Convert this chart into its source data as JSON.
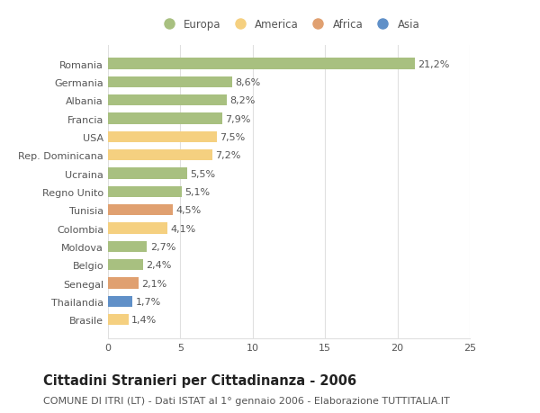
{
  "countries": [
    "Brasile",
    "Thailandia",
    "Senegal",
    "Belgio",
    "Moldova",
    "Colombia",
    "Tunisia",
    "Regno Unito",
    "Ucraina",
    "Rep. Dominicana",
    "USA",
    "Francia",
    "Albania",
    "Germania",
    "Romania"
  ],
  "values": [
    1.4,
    1.7,
    2.1,
    2.4,
    2.7,
    4.1,
    4.5,
    5.1,
    5.5,
    7.2,
    7.5,
    7.9,
    8.2,
    8.6,
    21.2
  ],
  "labels": [
    "1,4%",
    "1,7%",
    "2,1%",
    "2,4%",
    "2,7%",
    "4,1%",
    "4,5%",
    "5,1%",
    "5,5%",
    "7,2%",
    "7,5%",
    "7,9%",
    "8,2%",
    "8,6%",
    "21,2%"
  ],
  "continents": [
    "America",
    "Asia",
    "Africa",
    "Europa",
    "Europa",
    "America",
    "Africa",
    "Europa",
    "Europa",
    "America",
    "America",
    "Europa",
    "Europa",
    "Europa",
    "Europa"
  ],
  "continent_colors": {
    "Europa": "#a8c080",
    "America": "#f5d080",
    "Africa": "#e0a070",
    "Asia": "#6090c8"
  },
  "legend_order": [
    "Europa",
    "America",
    "Africa",
    "Asia"
  ],
  "title": "Cittadini Stranieri per Cittadinanza - 2006",
  "subtitle": "COMUNE DI ITRI (LT) - Dati ISTAT al 1° gennaio 2006 - Elaborazione TUTTITALIA.IT",
  "xlim": [
    0,
    25
  ],
  "xticks": [
    0,
    5,
    10,
    15,
    20,
    25
  ],
  "bg_color": "#ffffff",
  "grid_color": "#e0e0e0",
  "bar_height": 0.6,
  "title_fontsize": 10.5,
  "subtitle_fontsize": 8,
  "label_fontsize": 8,
  "tick_fontsize": 8,
  "legend_fontsize": 8.5
}
